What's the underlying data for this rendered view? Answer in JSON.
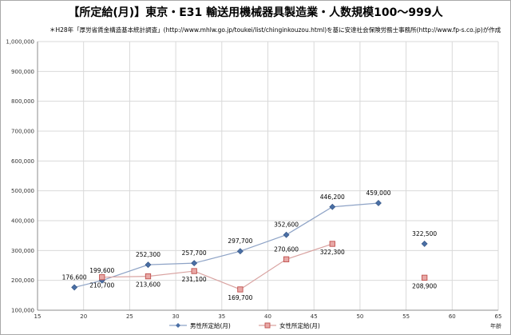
{
  "chart_data": {
    "type": "line",
    "title": "【所定給(月)】東京・E31 輸送用機械器具製造業・人数規模100〜999人",
    "subtitle": "＊H28年「厚労省賃金構造基本統計調査」(http://www.mhlw.go.jp/toukei/list/chinginkouzou.html)を基に安達社会保険労務士事務所(http://www.fp-s.co.jp)が作成",
    "xlabel": "年齢",
    "ylabel": "",
    "xlim": [
      15,
      65
    ],
    "ylim": [
      100000,
      1000000
    ],
    "x_ticks": [
      "15",
      "20",
      "25",
      "30",
      "35",
      "40",
      "45",
      "50",
      "55",
      "60",
      "65"
    ],
    "y_ticks": [
      "100,000",
      "200,000",
      "300,000",
      "400,000",
      "500,000",
      "600,000",
      "700,000",
      "800,000",
      "900,000",
      "1,000,000"
    ],
    "grid": true,
    "legend_position": "bottom",
    "series": [
      {
        "name": "男性所定給(月)",
        "color": "#4a6fa5",
        "marker": "diamond",
        "points": [
          {
            "x": 19,
            "y": 176600,
            "label": "176,600"
          },
          {
            "x": 22,
            "y": 199600,
            "label": "199,600"
          },
          {
            "x": 27,
            "y": 252300,
            "label": "252,300"
          },
          {
            "x": 32,
            "y": 257700,
            "label": "257,700"
          },
          {
            "x": 37,
            "y": 297700,
            "label": "297,700"
          },
          {
            "x": 42,
            "y": 352600,
            "label": "352,600"
          },
          {
            "x": 47,
            "y": 446200,
            "label": "446,200"
          },
          {
            "x": 52,
            "y": 459000,
            "label": "459,000"
          },
          {
            "x": 57,
            "y": 322500,
            "label": "322,500"
          }
        ],
        "segments": [
          [
            0,
            7
          ]
        ]
      },
      {
        "name": "女性所定給(月)",
        "color": "#c0504d",
        "marker": "square",
        "points": [
          {
            "x": 22,
            "y": 210700,
            "label": "210,700"
          },
          {
            "x": 27,
            "y": 213600,
            "label": "213,600"
          },
          {
            "x": 32,
            "y": 231100,
            "label": "231,100"
          },
          {
            "x": 37,
            "y": 169700,
            "label": "169,700"
          },
          {
            "x": 42,
            "y": 270600,
            "label": "270,600"
          },
          {
            "x": 47,
            "y": 322300,
            "label": "322,300"
          },
          {
            "x": 57,
            "y": 208900,
            "label": "208,900"
          }
        ],
        "segments": [
          [
            0,
            5
          ]
        ]
      }
    ]
  }
}
